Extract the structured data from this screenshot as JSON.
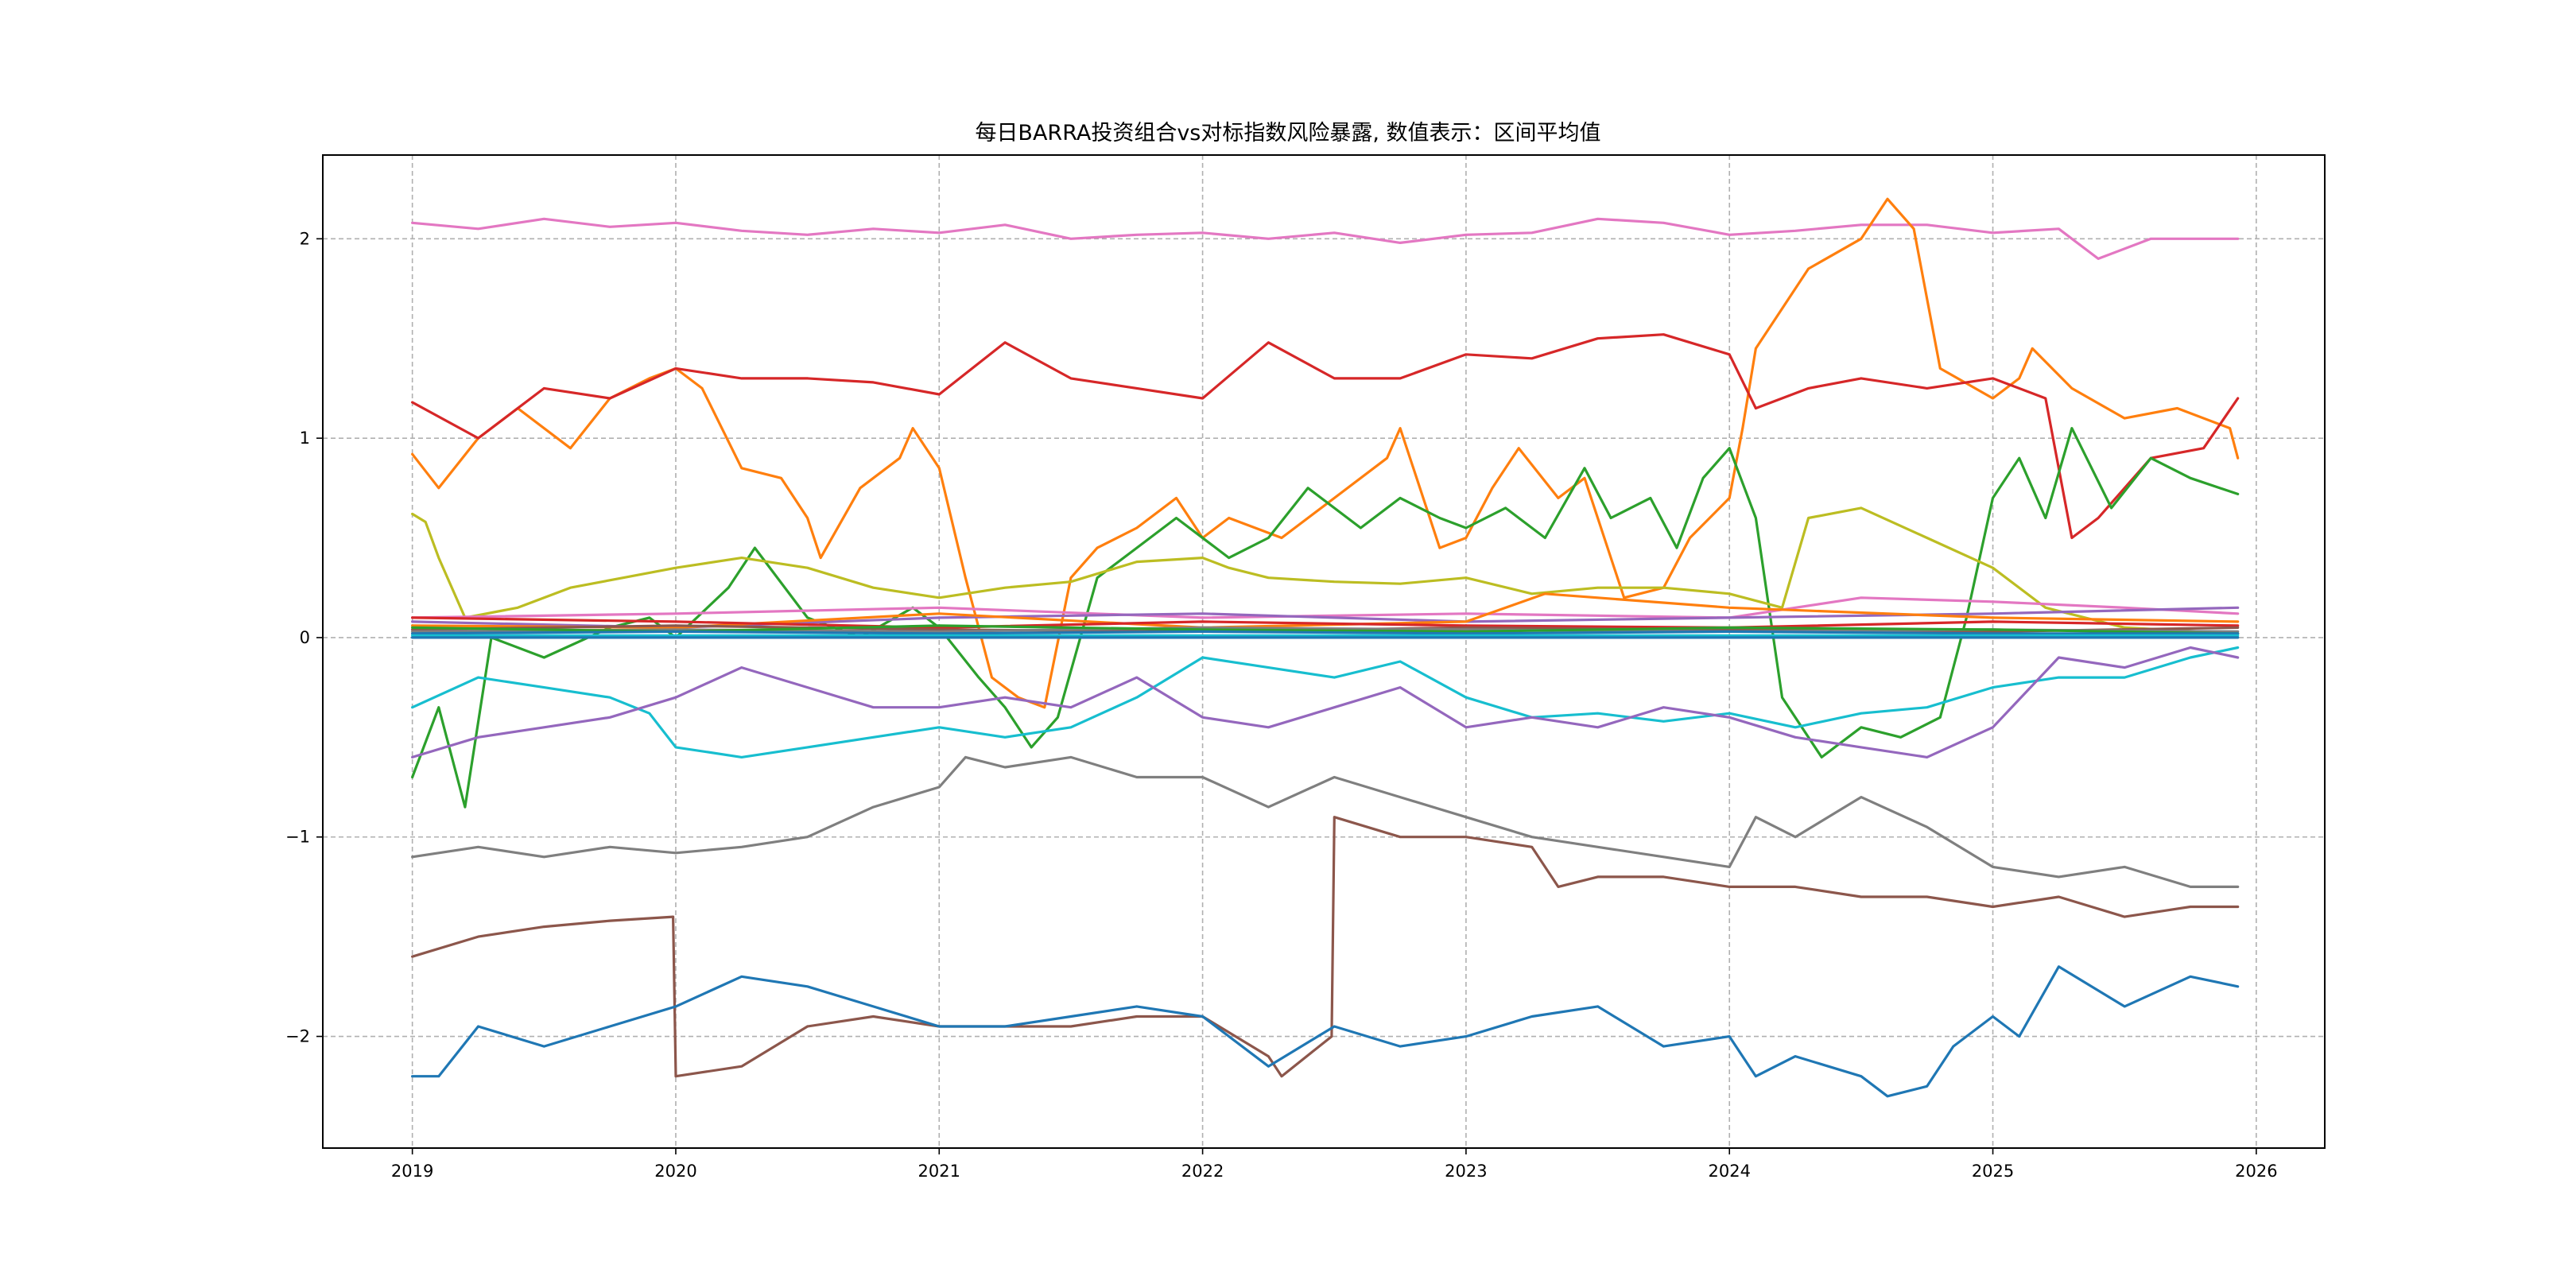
{
  "chart_data": {
    "type": "line",
    "title": "每日BARRA投资组合vs对标指数风险暴露, 数值表示：区间平均值",
    "xlabel": "",
    "ylabel": "",
    "xlim": [
      2018.66,
      2026.26
    ],
    "ylim": [
      -2.56,
      2.42
    ],
    "grid": true,
    "legend": "none",
    "x_ticks": [
      "2019",
      "2020",
      "2021",
      "2022",
      "2023",
      "2024",
      "2025",
      "2026"
    ],
    "x_tick_values": [
      2019,
      2020,
      2021,
      2022,
      2023,
      2024,
      2025,
      2026
    ],
    "y_ticks": [
      "−2",
      "−1",
      "0",
      "1",
      "2"
    ],
    "y_tick_values": [
      -2,
      -1,
      0,
      1,
      2
    ],
    "series": [
      {
        "color": "#e377c2",
        "x": [
          2019.0,
          2019.25,
          2019.5,
          2019.75,
          2020.0,
          2020.25,
          2020.5,
          2020.75,
          2021.0,
          2021.25,
          2021.5,
          2021.75,
          2022.0,
          2022.25,
          2022.5,
          2022.75,
          2023.0,
          2023.25,
          2023.5,
          2023.75,
          2024.0,
          2024.25,
          2024.5,
          2024.75,
          2025.0,
          2025.25,
          2025.4,
          2025.6,
          2025.93
        ],
        "y": [
          2.08,
          2.05,
          2.1,
          2.06,
          2.08,
          2.04,
          2.02,
          2.05,
          2.03,
          2.07,
          2.0,
          2.02,
          2.03,
          2.0,
          2.03,
          1.98,
          2.02,
          2.03,
          2.1,
          2.08,
          2.02,
          2.04,
          2.07,
          2.07,
          2.03,
          2.05,
          1.9,
          2.0,
          2.0
        ]
      },
      {
        "color": "#ff7f0e",
        "x": [
          2019.0,
          2019.1,
          2019.25,
          2019.4,
          2019.6,
          2019.75,
          2019.9,
          2020.0,
          2020.1,
          2020.25,
          2020.4,
          2020.5,
          2020.55,
          2020.7,
          2020.85,
          2020.9,
          2021.0,
          2021.1,
          2021.2,
          2021.3,
          2021.4,
          2021.5,
          2021.6,
          2021.75,
          2021.9,
          2022.0,
          2022.1,
          2022.3,
          2022.5,
          2022.7,
          2022.75,
          2022.9,
          2023.0,
          2023.1,
          2023.2,
          2023.35,
          2023.45,
          2023.6,
          2023.75,
          2023.85,
          2024.0,
          2024.05,
          2024.1,
          2024.3,
          2024.5,
          2024.6,
          2024.7,
          2024.8,
          2025.0,
          2025.1,
          2025.15,
          2025.3,
          2025.5,
          2025.7,
          2025.9,
          2025.93
        ],
        "y": [
          0.92,
          0.75,
          1.0,
          1.15,
          0.95,
          1.2,
          1.3,
          1.35,
          1.25,
          0.85,
          0.8,
          0.6,
          0.4,
          0.75,
          0.9,
          1.05,
          0.85,
          0.3,
          -0.2,
          -0.3,
          -0.35,
          0.3,
          0.45,
          0.55,
          0.7,
          0.5,
          0.6,
          0.5,
          0.7,
          0.9,
          1.05,
          0.45,
          0.5,
          0.75,
          0.95,
          0.7,
          0.8,
          0.2,
          0.25,
          0.5,
          0.7,
          1.05,
          1.45,
          1.85,
          2.0,
          2.2,
          2.05,
          1.35,
          1.2,
          1.3,
          1.45,
          1.25,
          1.1,
          1.15,
          1.05,
          0.9
        ]
      },
      {
        "color": "#d62728",
        "x": [
          2019.0,
          2019.25,
          2019.5,
          2019.75,
          2020.0,
          2020.25,
          2020.5,
          2020.75,
          2021.0,
          2021.25,
          2021.5,
          2021.75,
          2022.0,
          2022.25,
          2022.5,
          2022.75,
          2023.0,
          2023.25,
          2023.5,
          2023.75,
          2024.0,
          2024.1,
          2024.3,
          2024.5,
          2024.75,
          2025.0,
          2025.2,
          2025.3,
          2025.4,
          2025.6,
          2025.8,
          2025.93
        ],
        "y": [
          1.18,
          1.0,
          1.25,
          1.2,
          1.35,
          1.3,
          1.3,
          1.28,
          1.22,
          1.48,
          1.3,
          1.25,
          1.2,
          1.48,
          1.3,
          1.3,
          1.42,
          1.4,
          1.5,
          1.52,
          1.42,
          1.15,
          1.25,
          1.3,
          1.25,
          1.3,
          1.2,
          0.5,
          0.6,
          0.9,
          0.95,
          1.2
        ]
      },
      {
        "color": "#2ca02c",
        "x": [
          2019.0,
          2019.1,
          2019.2,
          2019.3,
          2019.5,
          2019.75,
          2019.9,
          2020.0,
          2020.2,
          2020.3,
          2020.5,
          2020.7,
          2020.9,
          2021.0,
          2021.15,
          2021.25,
          2021.35,
          2021.45,
          2021.6,
          2021.75,
          2021.9,
          2022.1,
          2022.25,
          2022.4,
          2022.6,
          2022.75,
          2022.9,
          2023.0,
          2023.15,
          2023.3,
          2023.45,
          2023.55,
          2023.7,
          2023.8,
          2023.9,
          2024.0,
          2024.1,
          2024.2,
          2024.35,
          2024.5,
          2024.65,
          2024.8,
          2024.9,
          2025.0,
          2025.1,
          2025.2,
          2025.3,
          2025.45,
          2025.6,
          2025.75,
          2025.93
        ],
        "y": [
          -0.7,
          -0.35,
          -0.85,
          0.0,
          -0.1,
          0.05,
          0.1,
          0.0,
          0.25,
          0.45,
          0.1,
          0.0,
          0.15,
          0.05,
          -0.2,
          -0.35,
          -0.55,
          -0.4,
          0.3,
          0.45,
          0.6,
          0.4,
          0.5,
          0.75,
          0.55,
          0.7,
          0.6,
          0.55,
          0.65,
          0.5,
          0.85,
          0.6,
          0.7,
          0.45,
          0.8,
          0.95,
          0.6,
          -0.3,
          -0.6,
          -0.45,
          -0.5,
          -0.4,
          0.1,
          0.7,
          0.9,
          0.6,
          1.05,
          0.65,
          0.9,
          0.8,
          0.72
        ]
      },
      {
        "color": "#bcbd22",
        "x": [
          2019.0,
          2019.05,
          2019.1,
          2019.2,
          2019.4,
          2019.6,
          2019.8,
          2020.0,
          2020.25,
          2020.5,
          2020.75,
          2021.0,
          2021.25,
          2021.5,
          2021.75,
          2022.0,
          2022.1,
          2022.25,
          2022.5,
          2022.75,
          2023.0,
          2023.25,
          2023.5,
          2023.75,
          2024.0,
          2024.2,
          2024.3,
          2024.5,
          2024.75,
          2025.0,
          2025.2,
          2025.5,
          2025.93
        ],
        "y": [
          0.62,
          0.58,
          0.4,
          0.1,
          0.15,
          0.25,
          0.3,
          0.35,
          0.4,
          0.35,
          0.25,
          0.2,
          0.25,
          0.28,
          0.38,
          0.4,
          0.35,
          0.3,
          0.28,
          0.27,
          0.3,
          0.22,
          0.25,
          0.25,
          0.22,
          0.15,
          0.6,
          0.65,
          0.5,
          0.35,
          0.15,
          0.05,
          0.02
        ]
      },
      {
        "color": "#17becf",
        "x": [
          2019.0,
          2019.25,
          2019.5,
          2019.75,
          2019.9,
          2020.0,
          2020.25,
          2020.5,
          2020.75,
          2021.0,
          2021.25,
          2021.5,
          2021.75,
          2022.0,
          2022.25,
          2022.5,
          2022.75,
          2023.0,
          2023.25,
          2023.5,
          2023.75,
          2024.0,
          2024.25,
          2024.5,
          2024.75,
          2025.0,
          2025.25,
          2025.5,
          2025.75,
          2025.93
        ],
        "y": [
          -0.35,
          -0.2,
          -0.25,
          -0.3,
          -0.38,
          -0.55,
          -0.6,
          -0.55,
          -0.5,
          -0.45,
          -0.5,
          -0.45,
          -0.3,
          -0.1,
          -0.15,
          -0.2,
          -0.12,
          -0.3,
          -0.4,
          -0.38,
          -0.42,
          -0.38,
          -0.45,
          -0.38,
          -0.35,
          -0.25,
          -0.2,
          -0.2,
          -0.1,
          -0.05
        ]
      },
      {
        "color": "#9467bd",
        "x": [
          2019.0,
          2019.25,
          2019.5,
          2019.75,
          2020.0,
          2020.25,
          2020.5,
          2020.75,
          2021.0,
          2021.25,
          2021.5,
          2021.75,
          2022.0,
          2022.25,
          2022.5,
          2022.75,
          2023.0,
          2023.25,
          2023.5,
          2023.75,
          2024.0,
          2024.25,
          2024.5,
          2024.75,
          2025.0,
          2025.25,
          2025.5,
          2025.75,
          2025.93
        ],
        "y": [
          -0.6,
          -0.5,
          -0.45,
          -0.4,
          -0.3,
          -0.15,
          -0.25,
          -0.35,
          -0.35,
          -0.3,
          -0.35,
          -0.2,
          -0.4,
          -0.45,
          -0.35,
          -0.25,
          -0.45,
          -0.4,
          -0.45,
          -0.35,
          -0.4,
          -0.5,
          -0.55,
          -0.6,
          -0.45,
          -0.1,
          -0.15,
          -0.05,
          -0.1
        ]
      },
      {
        "color": "#7f7f7f",
        "x": [
          2019.0,
          2019.25,
          2019.5,
          2019.75,
          2020.0,
          2020.25,
          2020.5,
          2020.75,
          2021.0,
          2021.1,
          2021.25,
          2021.5,
          2021.75,
          2022.0,
          2022.25,
          2022.5,
          2022.75,
          2023.0,
          2023.25,
          2023.5,
          2023.75,
          2024.0,
          2024.1,
          2024.25,
          2024.5,
          2024.75,
          2025.0,
          2025.25,
          2025.5,
          2025.75,
          2025.93
        ],
        "y": [
          -1.1,
          -1.05,
          -1.1,
          -1.05,
          -1.08,
          -1.05,
          -1.0,
          -0.85,
          -0.75,
          -0.6,
          -0.65,
          -0.6,
          -0.7,
          -0.7,
          -0.85,
          -0.7,
          -0.8,
          -0.9,
          -1.0,
          -1.05,
          -1.1,
          -1.15,
          -0.9,
          -1.0,
          -0.8,
          -0.95,
          -1.15,
          -1.2,
          -1.15,
          -1.25,
          -1.25
        ]
      },
      {
        "color": "#8c564b",
        "x": [
          2019.0,
          2019.25,
          2019.5,
          2019.75,
          2019.99,
          2020.0,
          2020.25,
          2020.5,
          2020.75,
          2021.0,
          2021.25,
          2021.5,
          2021.75,
          2022.0,
          2022.25,
          2022.3,
          2022.49,
          2022.5,
          2022.75,
          2023.0,
          2023.25,
          2023.35,
          2023.5,
          2023.75,
          2024.0,
          2024.25,
          2024.5,
          2024.75,
          2025.0,
          2025.25,
          2025.5,
          2025.75,
          2025.93
        ],
        "y": [
          -1.6,
          -1.5,
          -1.45,
          -1.42,
          -1.4,
          -2.2,
          -2.15,
          -1.95,
          -1.9,
          -1.95,
          -1.95,
          -1.95,
          -1.9,
          -1.9,
          -2.1,
          -2.2,
          -2.0,
          -0.9,
          -1.0,
          -1.0,
          -1.05,
          -1.25,
          -1.2,
          -1.2,
          -1.25,
          -1.25,
          -1.3,
          -1.3,
          -1.35,
          -1.3,
          -1.4,
          -1.35,
          -1.35
        ]
      },
      {
        "color": "#1f77b4",
        "x": [
          2019.0,
          2019.1,
          2019.25,
          2019.5,
          2019.75,
          2020.0,
          2020.25,
          2020.5,
          2020.75,
          2021.0,
          2021.25,
          2021.5,
          2021.75,
          2022.0,
          2022.25,
          2022.5,
          2022.75,
          2023.0,
          2023.25,
          2023.5,
          2023.75,
          2024.0,
          2024.1,
          2024.25,
          2024.5,
          2024.6,
          2024.75,
          2024.85,
          2025.0,
          2025.1,
          2025.25,
          2025.5,
          2025.75,
          2025.93
        ],
        "y": [
          -2.2,
          -2.2,
          -1.95,
          -2.05,
          -1.95,
          -1.85,
          -1.7,
          -1.75,
          -1.85,
          -1.95,
          -1.95,
          -1.9,
          -1.85,
          -1.9,
          -2.15,
          -1.95,
          -2.05,
          -2.0,
          -1.9,
          -1.85,
          -2.05,
          -2.0,
          -2.2,
          -2.1,
          -2.2,
          -2.3,
          -2.25,
          -2.05,
          -1.9,
          -2.0,
          -1.65,
          -1.85,
          -1.7,
          -1.75
        ]
      },
      {
        "color": "#e377c2",
        "x": [
          2019.0,
          2020.0,
          2021.0,
          2022.0,
          2023.0,
          2024.0,
          2024.5,
          2025.0,
          2025.5,
          2025.93
        ],
        "y": [
          0.1,
          0.12,
          0.15,
          0.1,
          0.12,
          0.1,
          0.2,
          0.18,
          0.15,
          0.12
        ]
      },
      {
        "color": "#9467bd",
        "x": [
          2019.0,
          2020.0,
          2021.0,
          2022.0,
          2023.0,
          2024.0,
          2025.0,
          2025.93
        ],
        "y": [
          0.08,
          0.05,
          0.1,
          0.12,
          0.08,
          0.1,
          0.12,
          0.15
        ]
      },
      {
        "color": "#ff7f0e",
        "x": [
          2019.0,
          2020.0,
          2021.0,
          2022.0,
          2023.0,
          2023.3,
          2024.0,
          2025.0,
          2025.93
        ],
        "y": [
          0.06,
          0.05,
          0.12,
          0.05,
          0.08,
          0.22,
          0.15,
          0.1,
          0.08
        ]
      },
      {
        "color": "#d62728",
        "x": [
          2019.0,
          2020.0,
          2021.0,
          2022.0,
          2023.0,
          2024.0,
          2025.0,
          2025.93
        ],
        "y": [
          0.1,
          0.08,
          0.05,
          0.08,
          0.06,
          0.05,
          0.08,
          0.06
        ]
      },
      {
        "color": "#8c564b",
        "x": [
          2019.0,
          2020.0,
          2021.0,
          2022.0,
          2023.0,
          2024.0,
          2025.0,
          2025.93
        ],
        "y": [
          0.04,
          0.06,
          0.04,
          0.03,
          0.05,
          0.04,
          0.03,
          0.05
        ]
      },
      {
        "color": "#7f7f7f",
        "x": [
          2019.0,
          2020.0,
          2021.0,
          2022.0,
          2023.0,
          2024.0,
          2025.0,
          2025.93
        ],
        "y": [
          0.03,
          0.04,
          0.03,
          0.05,
          0.04,
          0.03,
          0.04,
          0.03
        ]
      },
      {
        "color": "#2ca02c",
        "x": [
          2019.0,
          2020.0,
          2021.0,
          2022.0,
          2023.0,
          2024.0,
          2025.0,
          2025.93
        ],
        "y": [
          0.05,
          0.03,
          0.06,
          0.04,
          0.03,
          0.05,
          0.04,
          0.02
        ]
      },
      {
        "color": "#1f77b4",
        "x": [
          2019.0,
          2020.0,
          2021.0,
          2022.0,
          2023.0,
          2024.0,
          2025.0,
          2025.93
        ],
        "y": [
          0.02,
          0.03,
          0.02,
          0.03,
          0.02,
          0.03,
          0.02,
          0.02
        ]
      },
      {
        "color": "#17becf",
        "x": [
          2019.0,
          2025.93
        ],
        "y": [
          0.01,
          0.01
        ]
      },
      {
        "color": "#1f77b4",
        "x": [
          2019.0,
          2025.93
        ],
        "y": [
          0.0,
          0.0
        ]
      }
    ]
  }
}
